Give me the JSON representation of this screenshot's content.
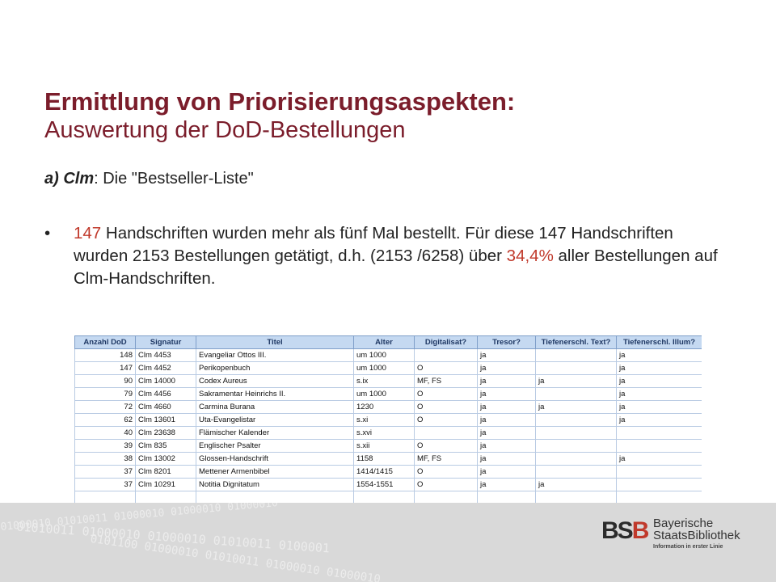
{
  "title": {
    "main": "Ermittlung von Priorisierungsaspekten:",
    "sub": "Auswertung der DoD-Bestellungen"
  },
  "subheading": {
    "prefix": "a) Clm",
    "rest": ": Die \"Bestseller-Liste\""
  },
  "bullet": {
    "marker": "•",
    "num1": "147",
    "text1": " Handschriften wurden mehr als fünf Mal bestellt. Für diese 147 Handschriften wurden 2153 Bestellungen getätigt, d.h. (2153 /6258) über ",
    "num2": "34,4%",
    "text2": " aller Bestellungen auf Clm-Handschriften."
  },
  "table": {
    "headers": [
      "Anzahl DoD",
      "Signatur",
      "Titel",
      "Alter",
      "Digitalisat?",
      "Tresor?",
      "Tiefenerschl. Text?",
      "Tiefenerschl. Illum?"
    ],
    "rows": [
      [
        "148",
        "Clm 4453",
        "Evangeliar Ottos III.",
        "um 1000",
        "",
        "ja",
        "",
        "ja"
      ],
      [
        "147",
        "Clm 4452",
        "Perikopenbuch",
        "um 1000",
        "O",
        "ja",
        "",
        "ja"
      ],
      [
        "90",
        "Clm 14000",
        "Codex Aureus",
        "s.ix",
        "MF, FS",
        "ja",
        "ja",
        "ja"
      ],
      [
        "79",
        "Clm 4456",
        "Sakramentar Heinrichs II.",
        "um 1000",
        "O",
        "ja",
        "",
        "ja"
      ],
      [
        "72",
        "Clm 4660",
        "Carmina Burana",
        "1230",
        "O",
        "ja",
        "ja",
        "ja"
      ],
      [
        "62",
        "Clm 13601",
        "Uta-Evangelistar",
        "s.xi",
        "O",
        "ja",
        "",
        "ja"
      ],
      [
        "40",
        "Clm 23638",
        "Flämischer Kalender",
        "s.xvi",
        "",
        "ja",
        "",
        ""
      ],
      [
        "39",
        "Clm 835",
        "Englischer Psalter",
        "s.xii",
        "O",
        "ja",
        "",
        ""
      ],
      [
        "38",
        "Clm 13002",
        "Glossen-Handschrift",
        "1158",
        "MF, FS",
        "ja",
        "",
        "ja"
      ],
      [
        "37",
        "Clm 8201",
        "Mettener Armenbibel",
        "1414/1415",
        "O",
        "ja",
        "",
        ""
      ],
      [
        "37",
        "Clm 10291",
        "Notitia Dignitatum",
        "1554-1551",
        "O",
        "ja",
        "ja",
        ""
      ],
      [
        "",
        "",
        "",
        "",
        "",
        "",
        "",
        ""
      ]
    ]
  },
  "footer": {
    "binary_lines": [
      "01000010 01010011 01000010 01000010 01000010",
      "01010011 01000010 01000010 01010011 0100001",
      "0101100 01000010 01010011 01000010 01000010"
    ],
    "logo_mark_1": "BS",
    "logo_mark_2": "B",
    "logo_line1": "Bayerische",
    "logo_line2": "StaatsBibliothek",
    "logo_tagline": "Information in erster Linie"
  }
}
